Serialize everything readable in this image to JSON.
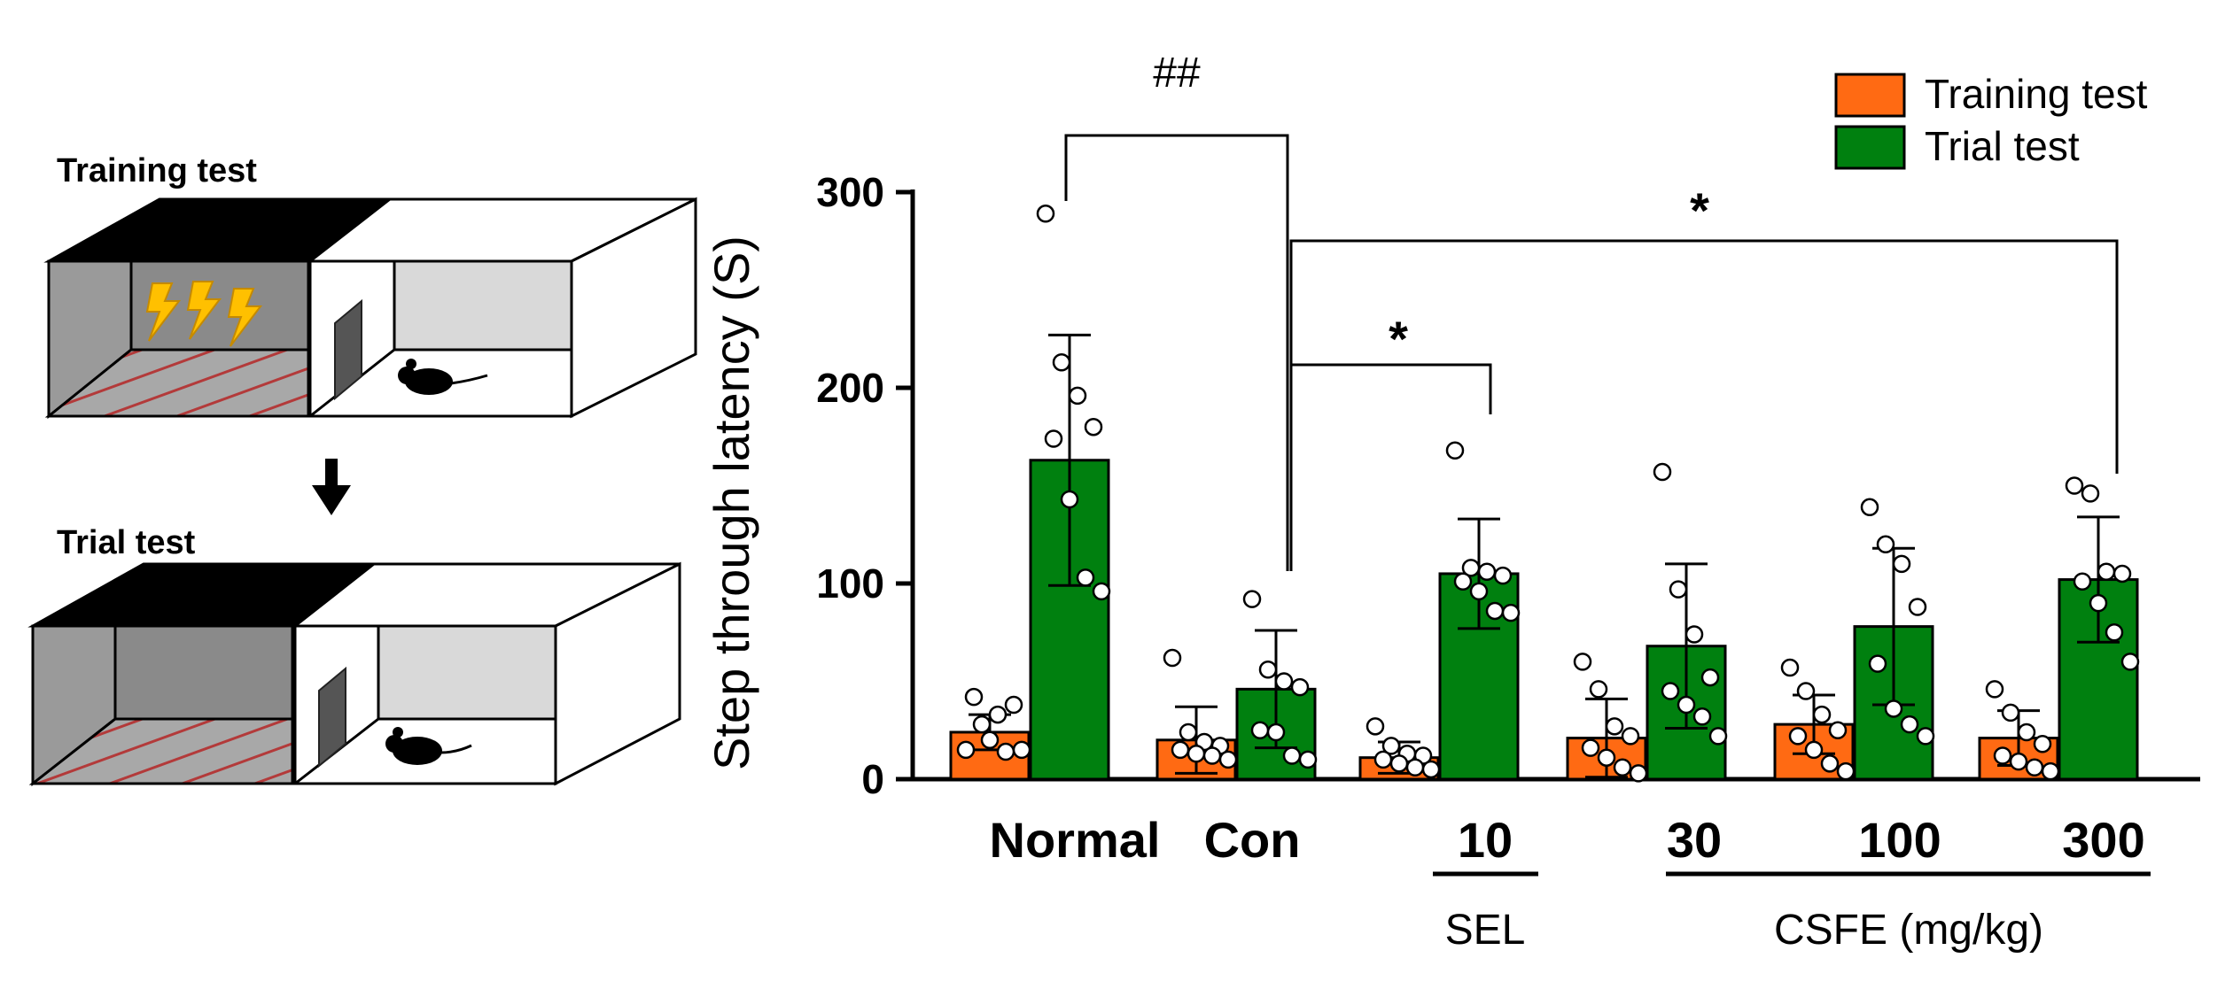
{
  "illustration": {
    "top_label": "Training test",
    "bottom_label": "Trial test",
    "arrow": "down-arrow",
    "shock_icon": "lightning-bolt-icon",
    "mouse_icon": "mouse-icon"
  },
  "chart_data": {
    "type": "bar",
    "ylabel": "Step through latency (S)",
    "ylim": [
      0,
      300
    ],
    "yticks": [
      0,
      100,
      200,
      300
    ],
    "categories": [
      "Normal",
      "Con",
      "10",
      "30",
      "100",
      "300"
    ],
    "group_labels": [
      {
        "label": "SEL",
        "covers": [
          "10"
        ]
      },
      {
        "label": "CSFE (mg/kg)",
        "covers": [
          "30",
          "100",
          "300"
        ]
      }
    ],
    "series": [
      {
        "name": "Training test",
        "color": "#FF6A13",
        "values": [
          24,
          20,
          11,
          21,
          28,
          21
        ],
        "sd": [
          9,
          17,
          8,
          20,
          15,
          14
        ],
        "points": [
          [
            15,
            28,
            33,
            38,
            42,
            20,
            14,
            15
          ],
          [
            62,
            24,
            19,
            17,
            15,
            13,
            12,
            10
          ],
          [
            27,
            17,
            13,
            12,
            10,
            8,
            6,
            5
          ],
          [
            60,
            46,
            27,
            22,
            16,
            11,
            6,
            3
          ],
          [
            57,
            45,
            33,
            25,
            22,
            15,
            8,
            4
          ],
          [
            46,
            34,
            24,
            18,
            12,
            9,
            6,
            4
          ]
        ]
      },
      {
        "name": "Trial test",
        "color": "#00800F",
        "values": [
          163,
          46,
          105,
          68,
          78,
          102
        ],
        "sd": [
          64,
          30,
          28,
          42,
          40,
          32
        ],
        "points": [
          [
            289,
            213,
            196,
            180,
            174,
            143,
            103,
            96
          ],
          [
            92,
            56,
            50,
            47,
            25,
            24,
            12,
            10
          ],
          [
            168,
            108,
            106,
            104,
            101,
            96,
            86,
            85
          ],
          [
            157,
            97,
            74,
            52,
            45,
            38,
            32,
            22
          ],
          [
            139,
            120,
            110,
            88,
            59,
            36,
            28,
            22
          ],
          [
            150,
            146,
            106,
            105,
            101,
            90,
            75,
            60
          ]
        ]
      }
    ],
    "annotations": [
      {
        "label": "##",
        "from": "Normal",
        "to": "Con"
      },
      {
        "label": "*",
        "from": "Con",
        "to": "10"
      },
      {
        "label": "*",
        "from": "Con",
        "to": "300"
      }
    ],
    "legend": {
      "position": "top-right",
      "entries": [
        "Training test",
        "Trial test"
      ]
    }
  }
}
